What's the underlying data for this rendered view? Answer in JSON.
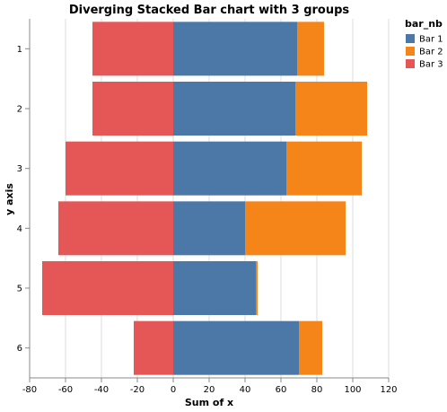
{
  "chart_data": {
    "type": "bar",
    "orientation": "horizontal",
    "stacked": "diverging",
    "title": "Diverging Stacked Bar chart with 3 groups",
    "xlabel": "Sum of x",
    "ylabel": "y axis",
    "xlim": [
      -80,
      120
    ],
    "xticks": [
      -80,
      -60,
      -40,
      -20,
      0,
      20,
      40,
      60,
      80,
      100,
      120
    ],
    "grid": true,
    "legend": {
      "title": "bar_nb",
      "position": "top-right"
    },
    "categories": [
      "1",
      "2",
      "3",
      "4",
      "5",
      "6"
    ],
    "series": [
      {
        "name": "Bar 1",
        "color": "#4c78a8",
        "values": [
          69,
          68,
          63,
          40,
          46,
          70
        ]
      },
      {
        "name": "Bar 2",
        "color": "#f58518",
        "values": [
          15,
          40,
          42,
          56,
          1,
          13
        ]
      },
      {
        "name": "Bar 3",
        "color": "#e45756",
        "values": [
          -45,
          -45,
          -60,
          -64,
          -73,
          -22
        ]
      }
    ]
  }
}
